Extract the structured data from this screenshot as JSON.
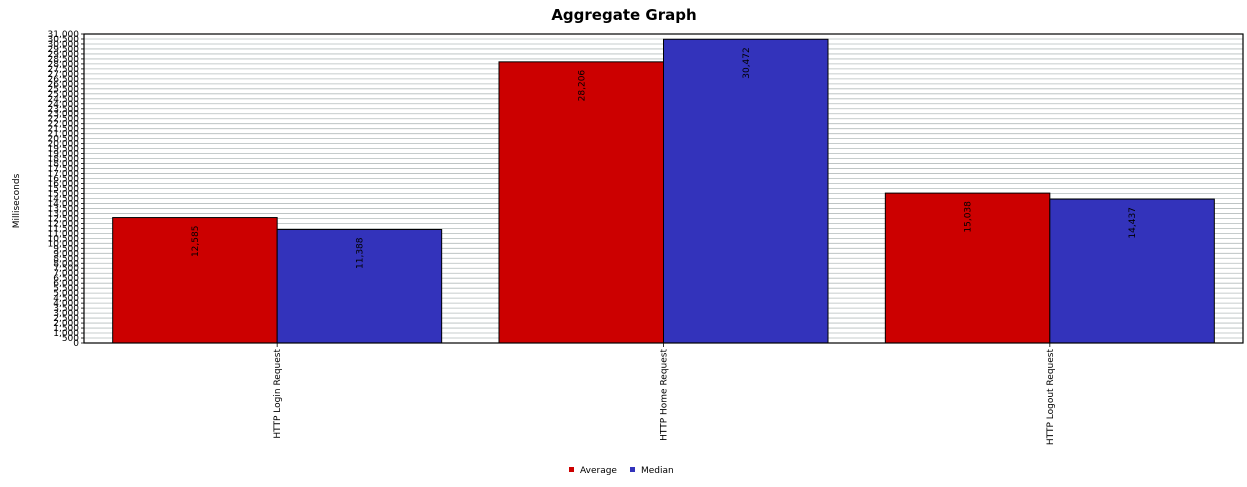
{
  "chart_data": {
    "type": "bar",
    "title": "Aggregate Graph",
    "ylabel": "Milliseconds",
    "xlabel": "",
    "categories": [
      "HTTP Login Request",
      "HTTP Home Request",
      "HTTP Logout Request"
    ],
    "series": [
      {
        "name": "Average",
        "color": "#cc0000",
        "values": [
          12585,
          28206,
          15038
        ],
        "labels": [
          "12,585",
          "28,206",
          "15,038"
        ]
      },
      {
        "name": "Median",
        "color": "#3333bb",
        "values": [
          11388,
          30472,
          14437
        ],
        "labels": [
          "11,388",
          "30,472",
          "14,437"
        ]
      }
    ],
    "ylim": [
      0,
      31000
    ],
    "yticks": [
      0,
      500,
      1000,
      1500,
      2000,
      2500,
      3000,
      3500,
      4000,
      4500,
      5000,
      5500,
      6000,
      6500,
      7000,
      7500,
      8000,
      8500,
      9000,
      9500,
      10000,
      10500,
      11000,
      11500,
      12000,
      12500,
      13000,
      13500,
      14000,
      14500,
      15000,
      15500,
      16000,
      16500,
      17000,
      17500,
      18000,
      18500,
      19000,
      19500,
      20000,
      20500,
      21000,
      21500,
      22000,
      22500,
      23000,
      23500,
      24000,
      24500,
      25000,
      25500,
      26000,
      26500,
      27000,
      27500,
      28000,
      28500,
      29000,
      29500,
      30000,
      30500,
      31000
    ],
    "ytick_labels": [
      "0",
      "500",
      "1,000",
      "1,500",
      "2,000",
      "2,500",
      "3,000",
      "3,500",
      "4,000",
      "4,500",
      "5,000",
      "5,500",
      "6,000",
      "6,500",
      "7,000",
      "7,500",
      "8,000",
      "8,500",
      "9,000",
      "9,500",
      "10,000",
      "10,500",
      "11,000",
      "11,500",
      "12,000",
      "12,500",
      "13,000",
      "13,500",
      "14,000",
      "14,500",
      "15,000",
      "15,500",
      "16,000",
      "16,500",
      "17,000",
      "17,500",
      "18,000",
      "18,500",
      "19,000",
      "19,500",
      "20,000",
      "20,500",
      "21,000",
      "21,500",
      "22,000",
      "22,500",
      "23,000",
      "23,500",
      "24,000",
      "24,500",
      "25,000",
      "25,500",
      "26,000",
      "26,500",
      "27,000",
      "27,500",
      "28,000",
      "28,500",
      "29,000",
      "29,500",
      "30,000",
      "30,500",
      "31,000"
    ],
    "grid": true,
    "legend": "bottom-center"
  }
}
